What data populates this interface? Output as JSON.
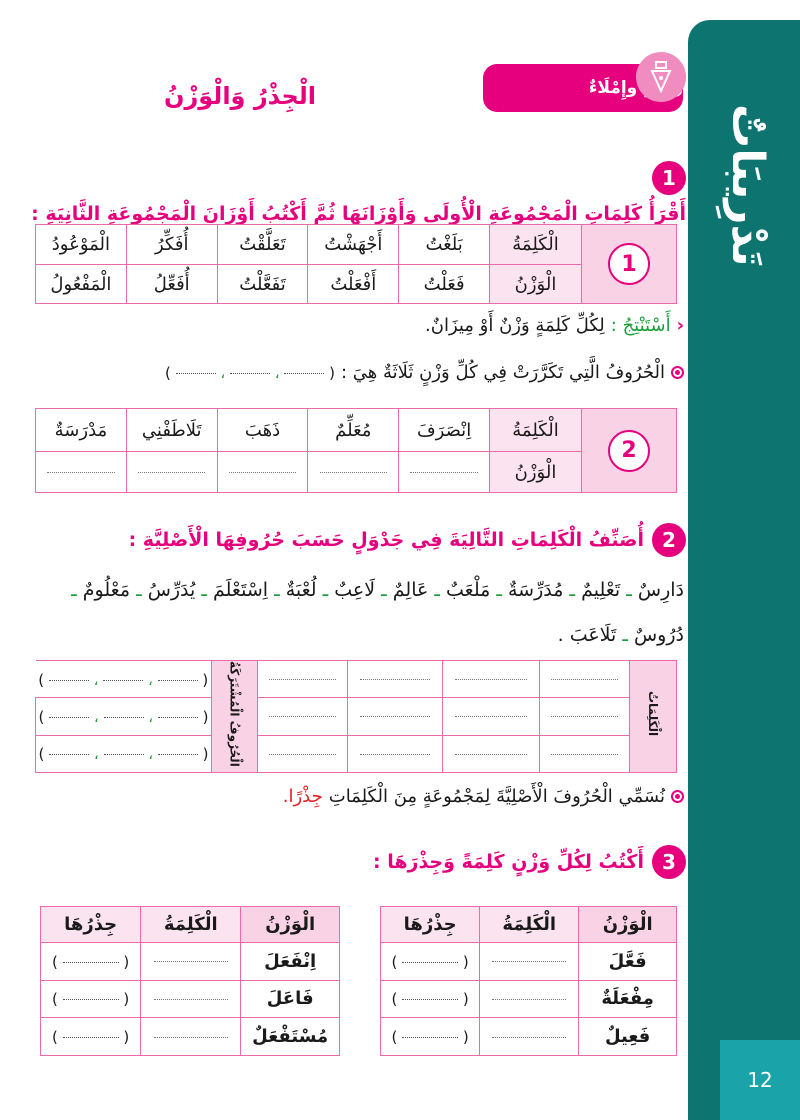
{
  "colors": {
    "accent": "#e6007e",
    "band": "#0e7470",
    "cell": "#f9d3e5",
    "green": "#1e9e3a",
    "red": "#e31e24"
  },
  "side_band": {
    "title": "تَدْرِيبَاتٌ",
    "page_number": "12"
  },
  "header": {
    "section_label": "رَسْمٌ وإِمْلَاءٌ",
    "section_icon": "pen-nib-icon",
    "title": "الْجِذْرُ وَالْوَزْنُ"
  },
  "q1": {
    "number": "1",
    "text": "أَقْرَأُ كَلِمَاتِ الْمَجْمُوعَةِ الْأُولَى وَأَوْزَانَهَا ثُمَّ أَكْتُبُ أَوْزَانَ الْمَجْمُوعَةِ الثَّانِيَةِ :",
    "group1": {
      "number": "1",
      "word_label": "الْكَلِمَةُ",
      "weight_label": "الْوَزْنُ",
      "words": [
        "بَلَغْتُ",
        "أَجْهَشْتُ",
        "تَعَلَّقْتُ",
        "أُفَكِّرُ",
        "الْمَوْعُودُ"
      ],
      "weights": [
        "فَعَلْتُ",
        "أَفْعَلْتُ",
        "تَفَعَّلْتُ",
        "أُفَعِّلُ",
        "الْمَفْعُولُ"
      ]
    },
    "conclude_label": "أَسْتَنْتِجُ :",
    "conclude_text": "لِكُلِّ كَلِمَةٍ وَزْنٌ أَوْ مِيزَانٌ.",
    "repeated_text": "الْحُرُوفُ الَّتِي تَكَرَّرَتْ فِي كُلِّ وَزْنٍ ثَلَاثَةٌ هِيَ :",
    "group2": {
      "number": "2",
      "word_label": "الْكَلِمَةُ",
      "weight_label": "الْوَزْنُ",
      "words": [
        "اِنْصَرَفَ",
        "مُعَلِّمٌ",
        "ذَهَبَ",
        "تَلَاطَفْنِي",
        "مَدْرَسَةٌ"
      ]
    }
  },
  "q2": {
    "number": "2",
    "text": "أُصَنِّفُ الْكَلِمَاتِ التَّالِيَةَ فِي جَدْوَلٍ حَسَبَ حُرُوفِهَا الْأَصْلِيَّةِ :",
    "words": [
      "دَارِسٌ",
      "تَعْلِيمٌ",
      "مُدَرِّسَةٌ",
      "مَلْعَبٌ",
      "عَالِمٌ",
      "لَاعِبٌ",
      "لُعْبَةٌ",
      "اِسْتَعْلَمَ",
      "يُدَرِّسُ",
      "مَعْلُومٌ",
      "دُرُوسٌ",
      "تَلَاعَبَ"
    ],
    "separator": "ـ",
    "table": {
      "words_label": "الْكَلِمَاتُ",
      "shared_label": "الْحُرُوفُ الْمُشْتَرَكَةُ"
    },
    "note_text": "نُسَمِّي الْحُرُوفَ الْأَصْلِيَّةَ لِمَجْمُوعَةٍ مِنَ الْكَلِمَاتِ",
    "note_highlight": "جِذْرًا."
  },
  "q3": {
    "number": "3",
    "text": "أَكْتُبُ لِكُلِّ وَزْنٍ كَلِمَةً وَجِذْرَهَا :",
    "headers": [
      "الْوَزْنُ",
      "الْكَلِمَةُ",
      "جِذْرُهَا"
    ],
    "right_weights": [
      "فَعَّلَ",
      "مِفْعَلَةٌ",
      "فَعِيلٌ"
    ],
    "left_weights": [
      "اِنْفَعَلَ",
      "فَاعَلَ",
      "مُسْتَفْعَلٌ"
    ]
  }
}
